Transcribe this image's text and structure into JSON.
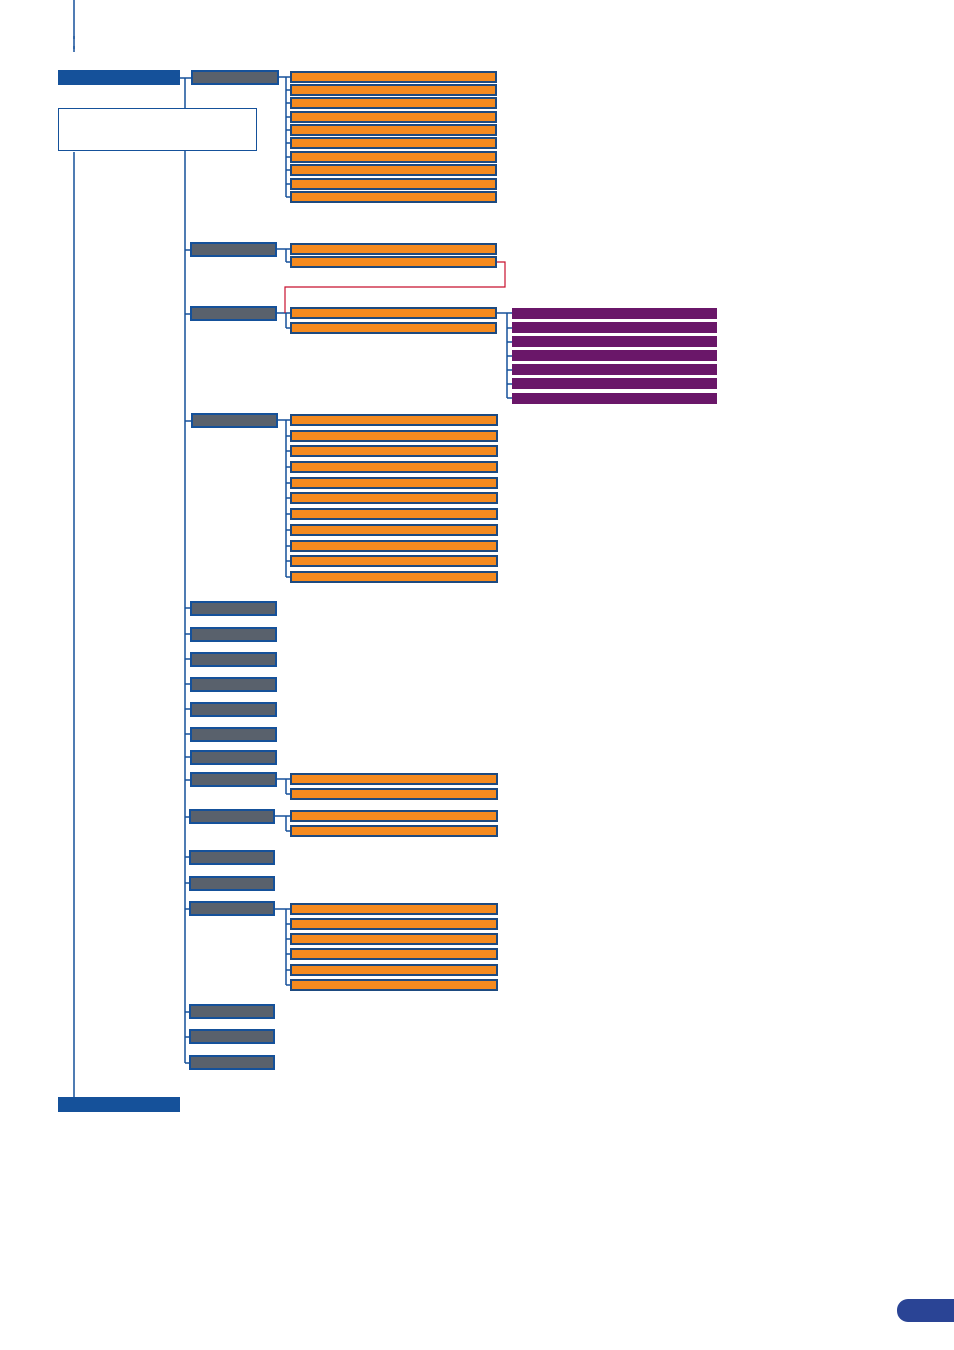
{
  "colors": {
    "main_bar": "#15519a",
    "submenu_box": "#59616c",
    "option_box": "#f48a1f",
    "option_border": "#1d4a80",
    "sub_option_box": "#6a1769",
    "connector": "#15519a",
    "link_line": "#c8102e",
    "page_tab": "#2a4495"
  },
  "diagram": {
    "top_bar_label": "",
    "note_text": "",
    "bottom_bar_label": "",
    "page_number": "",
    "submenus": [
      {
        "label": "",
        "options": 10
      },
      {
        "label": "",
        "options": 2
      },
      {
        "label": "",
        "options": 2,
        "sub_options": 7
      },
      {
        "label": "",
        "options": 11
      },
      {
        "label": "",
        "options": 0
      },
      {
        "label": "",
        "options": 0
      },
      {
        "label": "",
        "options": 0
      },
      {
        "label": "",
        "options": 0
      },
      {
        "label": "",
        "options": 0
      },
      {
        "label": "",
        "options": 0
      },
      {
        "label": "",
        "options": 0
      },
      {
        "label": "",
        "options": 2
      },
      {
        "label": "",
        "options": 2
      },
      {
        "label": "",
        "options": 0
      },
      {
        "label": "",
        "options": 0
      },
      {
        "label": "",
        "options": 6
      },
      {
        "label": "",
        "options": 0
      },
      {
        "label": "",
        "options": 0
      },
      {
        "label": "",
        "options": 0
      }
    ]
  }
}
